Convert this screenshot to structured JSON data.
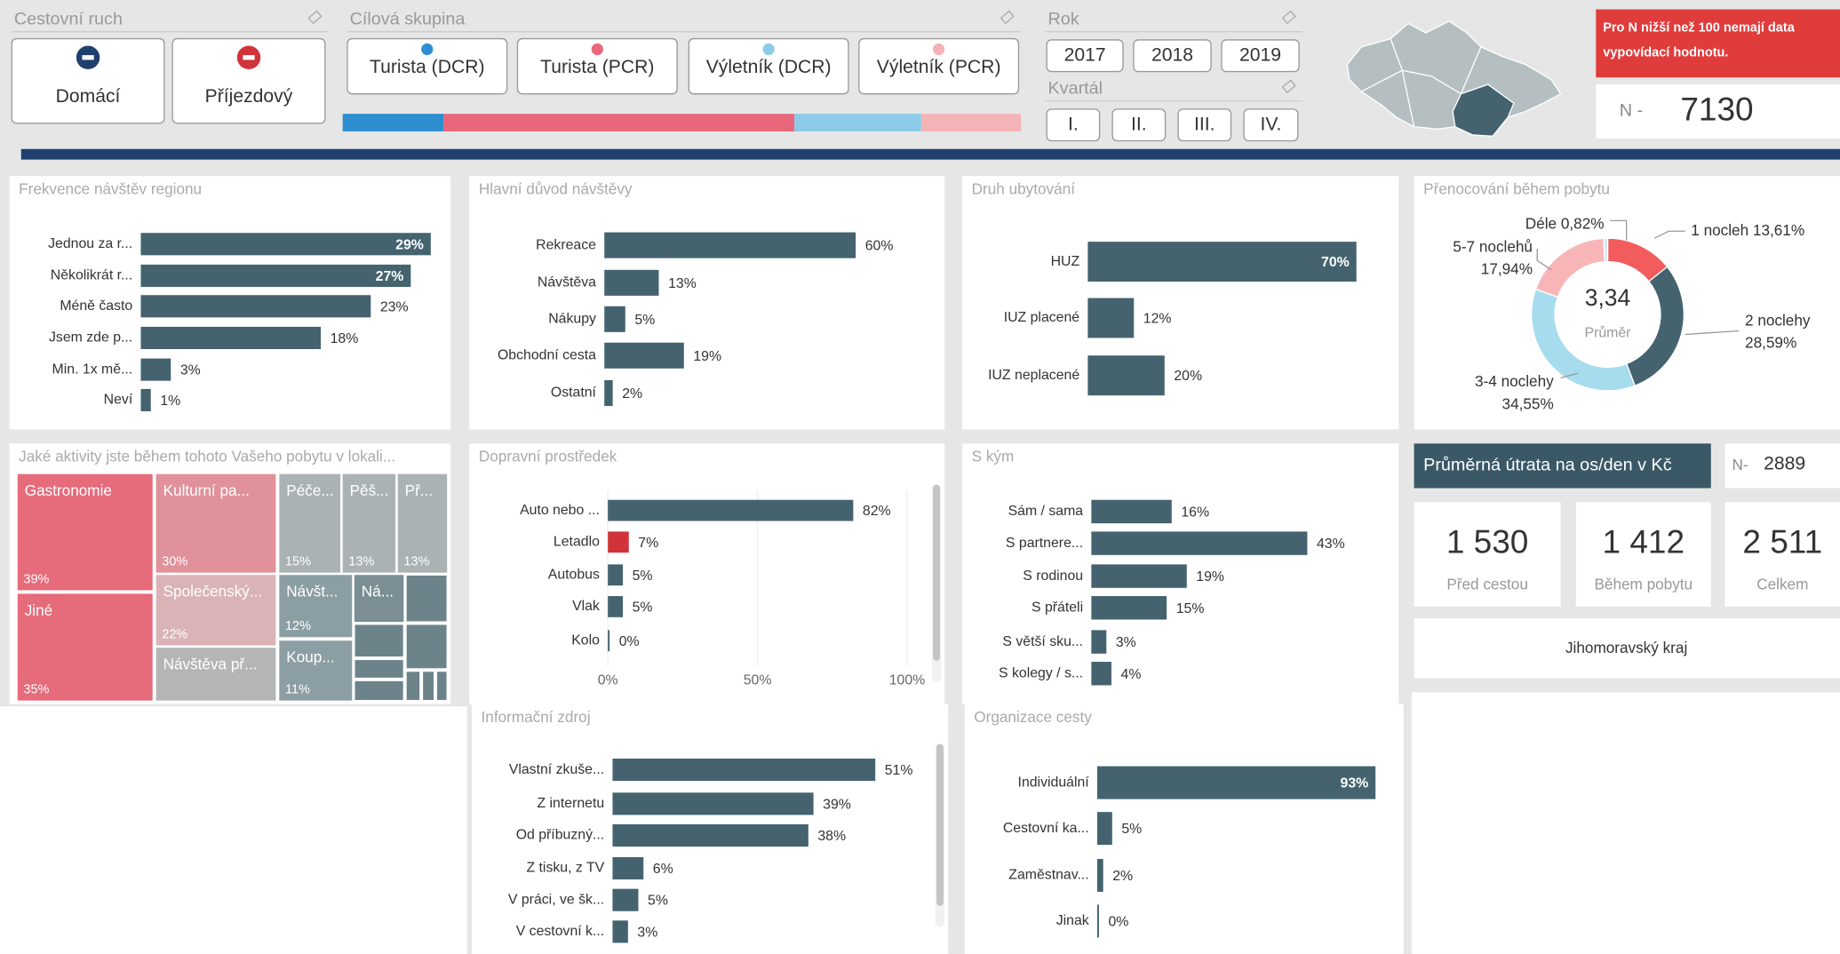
{
  "slicers": {
    "travel": {
      "title": "Cestovní ruch",
      "options": [
        "Domácí",
        "Příjezdový"
      ],
      "colors": [
        "#1f3f6e",
        "#d13438"
      ]
    },
    "group": {
      "title": "Cílová skupina",
      "options": [
        "Turista (DCR)",
        "Turista (PCR)",
        "Výletník (DCR)",
        "Výletník (PCR)"
      ],
      "colors": [
        "#2e8fd0",
        "#e8677a",
        "#8ccbe8",
        "#f4b3b6"
      ]
    },
    "year": {
      "title": "Rok",
      "options": [
        "2017",
        "2018",
        "2019"
      ]
    },
    "quarter": {
      "title": "Kvartál",
      "options": [
        "I.",
        "II.",
        "III.",
        "IV."
      ]
    }
  },
  "notice": "Pro N nižší než 100 nemají data vypovídací hodnotu.",
  "n_total": {
    "label": "N -",
    "value": 7130
  },
  "chart_data": [
    {
      "type": "bar",
      "title": "Frekvence návštěv regionu",
      "color": "#44636f",
      "categories": [
        "Jednou za r...",
        "Několikrát r...",
        "Méně často",
        "Jsem zde p...",
        "Min. 1x mě...",
        "Neví"
      ],
      "values": [
        29,
        27,
        23,
        18,
        3,
        1
      ],
      "value_labels": [
        "29%",
        "27%",
        "23%",
        "18%",
        "3%",
        "1%"
      ]
    },
    {
      "type": "bar",
      "title": "Hlavní důvod návštěvy",
      "color": "#44636f",
      "categories": [
        "Rekreace",
        "Návštěva",
        "Nákupy",
        "Obchodní cesta",
        "Ostatní"
      ],
      "values": [
        60,
        13,
        5,
        19,
        2
      ],
      "value_labels": [
        "60%",
        "13%",
        "5%",
        "19%",
        "2%"
      ]
    },
    {
      "type": "bar",
      "title": "Druh ubytování",
      "color": "#44636f",
      "categories": [
        "HUZ",
        "IUZ placené",
        "IUZ neplacené"
      ],
      "values": [
        70,
        12,
        20
      ],
      "value_labels": [
        "70%",
        "12%",
        "20%"
      ]
    },
    {
      "type": "donut",
      "title": "Přenocování během pobytu",
      "categories": [
        "1 nocleh",
        "2 noclehy",
        "3-4 noclehy",
        "5-7 noclehů",
        "Déle"
      ],
      "values": [
        13.61,
        28.59,
        34.55,
        17.94,
        0.82
      ],
      "value_labels": [
        "13,61%",
        "28,59%",
        "34,55%",
        "17,94%",
        "0,82%"
      ],
      "colors": [
        "#f25c5c",
        "#44636f",
        "#a6dcee",
        "#f8b5b8",
        "#cfeaf5"
      ],
      "center_value": "3,34",
      "center_label": "Průměr"
    },
    {
      "type": "treemap",
      "title": "Jaké aktivity jste během tohoto Vašeho pobytu v lokali...",
      "categories": [
        "Gastronomie",
        "Jiné",
        "Kulturní pa...",
        "Společenský...",
        "Návštěva př...",
        "Péče...",
        "Pěš...",
        "Př...",
        "Návšt...",
        "Ná...",
        "Koup..."
      ],
      "values": [
        39,
        35,
        30,
        22,
        10,
        15,
        13,
        13,
        12,
        8,
        11
      ],
      "value_labels": [
        "39%",
        "35%",
        "30%",
        "22%",
        null,
        "15%",
        "13%",
        "13%",
        "12%",
        null,
        "11%"
      ],
      "colors": [
        "#e66b7b",
        "#e66b7b",
        "#e0919a",
        "#d9b3b6",
        "#b3b5b6",
        "#aab2b4",
        "#aab2b4",
        "#aab2b4",
        "#8b9ea3",
        "#7a8e94",
        "#8b9ea3"
      ]
    },
    {
      "type": "bar",
      "title": "Dopravní prostředek",
      "colors": [
        "#44636f",
        "#d13438",
        "#44636f",
        "#44636f",
        "#44636f"
      ],
      "categories": [
        "Auto nebo ...",
        "Letadlo",
        "Autobus",
        "Vlak",
        "Kolo"
      ],
      "values": [
        82,
        7,
        5,
        5,
        0
      ],
      "value_labels": [
        "82%",
        "7%",
        "5%",
        "5%",
        "0%"
      ],
      "xlim": [
        0,
        100
      ],
      "xticks": [
        {
          "value": 0,
          "label": "0%"
        },
        {
          "value": 50,
          "label": "50%"
        },
        {
          "value": 100,
          "label": "100%"
        }
      ],
      "grid": true
    },
    {
      "type": "bar",
      "title": "S kým",
      "color": "#44636f",
      "categories": [
        "Sám / sama",
        "S partnere...",
        "S rodinou",
        "S přáteli",
        "S větší sku...",
        "S kolegy / s..."
      ],
      "values": [
        16,
        43,
        19,
        15,
        3,
        4
      ],
      "value_labels": [
        "16%",
        "43%",
        "19%",
        "15%",
        "3%",
        "4%"
      ]
    },
    {
      "type": "bar",
      "title": "Informační zdroj",
      "color": "#44636f",
      "categories": [
        "Vlastní zkuše...",
        "Z internetu",
        "Od příbuzný...",
        "Z tisku, z TV",
        "V práci, ve šk...",
        "V cestovní k..."
      ],
      "values": [
        51,
        39,
        38,
        6,
        5,
        3
      ],
      "value_labels": [
        "51%",
        "39%",
        "38%",
        "6%",
        "5%",
        "3%"
      ]
    },
    {
      "type": "bar",
      "title": "Organizace cesty",
      "color": "#44636f",
      "categories": [
        "Individuální",
        "Cestovní ka...",
        "Zaměstnav...",
        "Jinak"
      ],
      "values": [
        93,
        5,
        2,
        0
      ],
      "value_labels": [
        "93%",
        "5%",
        "2%",
        "0%"
      ]
    }
  ],
  "spending": {
    "title": "Průměrná útrata na os/den v Kč",
    "n_label": "N-",
    "n": 2889,
    "cards": [
      {
        "value": "1 530",
        "label": "Před cestou"
      },
      {
        "value": "1 412",
        "label": "Během pobytu"
      },
      {
        "value": "2 511",
        "label": "Celkem"
      }
    ],
    "region": "Jihomoravský kraj"
  }
}
